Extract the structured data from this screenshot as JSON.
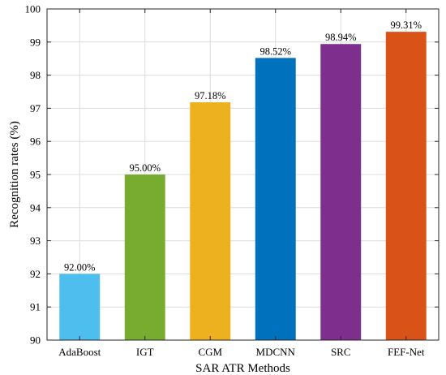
{
  "chart_data": {
    "type": "bar",
    "title": "",
    "xlabel": "SAR ATR Methods",
    "ylabel": "Recognition rates (%)",
    "ylim": [
      90,
      100
    ],
    "yticks": [
      90,
      91,
      92,
      93,
      94,
      95,
      96,
      97,
      98,
      99,
      100
    ],
    "grid": true,
    "categories": [
      "AdaBoost",
      "IGT",
      "CGM",
      "MDCNN",
      "SRC",
      "FEF-Net"
    ],
    "values": [
      92.0,
      95.0,
      97.18,
      98.52,
      98.94,
      99.31
    ],
    "data_labels": [
      "92.00%",
      "95.00%",
      "97.18%",
      "98.52%",
      "98.94%",
      "99.31%"
    ],
    "colors": [
      "#4dbeee",
      "#77ac30",
      "#edb120",
      "#0072bd",
      "#7e2f8e",
      "#d95319"
    ]
  }
}
